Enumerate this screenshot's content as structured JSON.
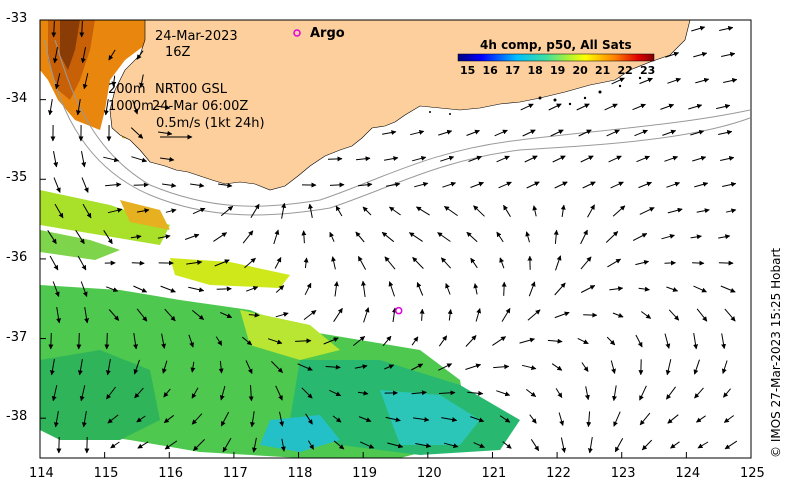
{
  "map": {
    "date": "24-Mar-2023",
    "hour": "16Z",
    "depth_shallow": "200m",
    "depth_deep": "1000m",
    "product": "NRT00 GSL",
    "product_time": "24-Mar 06:00Z",
    "scale_label": "0.5m/s (1kt 24h)",
    "argo_label": "Argo",
    "colorbar_title": "4h comp, p50, All Sats",
    "colorbar_ticks": [
      "15",
      "16",
      "17",
      "18",
      "19",
      "20",
      "21",
      "22",
      "23"
    ],
    "credit": "© IMOS 27-Mar-2023 15:25 Hobart",
    "x_ticks": [
      "114",
      "115",
      "116",
      "117",
      "118",
      "119",
      "120",
      "121",
      "122",
      "123",
      "124",
      "125"
    ],
    "y_ticks": [
      "-33",
      "-34",
      "-35",
      "-36",
      "-37",
      "-38"
    ],
    "x_range": [
      114,
      125
    ],
    "y_range": [
      -38.5,
      -33
    ],
    "argo_float": {
      "lon": 119.55,
      "lat": -36.65
    },
    "colors": {
      "land": "#fccf9c",
      "argo": "#e000e0",
      "sst_scale": [
        "#00007f",
        "#0000ff",
        "#007fff",
        "#00ffff",
        "#7fff7f",
        "#ffff00",
        "#ff7f00",
        "#ff0000",
        "#7f0000"
      ]
    }
  }
}
